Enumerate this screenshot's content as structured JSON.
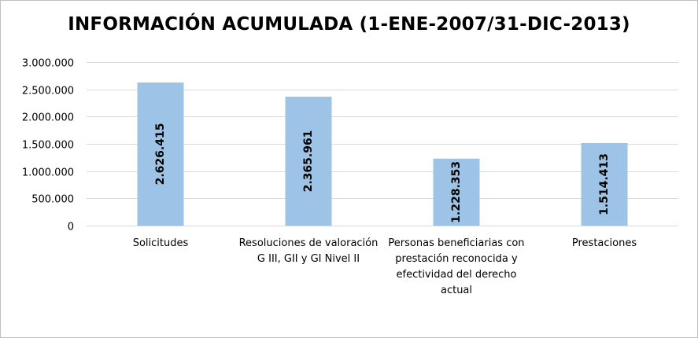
{
  "chart_data": {
    "type": "bar",
    "title": "INFORMACIÓN ACUMULADA (1-ENE-2007/31-DIC-2013)",
    "categories": [
      "Solicitudes",
      "Resoluciones de valoración G III, GII y GI Nivel II",
      "Personas beneficiarias con prestación reconocida y efectividad del derecho actual",
      "Prestaciones"
    ],
    "values": [
      2626415,
      2365961,
      1228353,
      1514413
    ],
    "value_labels": [
      "2.626.415",
      "2.365.961",
      "1.228.353",
      "1.514.413"
    ],
    "ylim": [
      0,
      3000000
    ],
    "yticks": [
      0,
      500000,
      1000000,
      1500000,
      2000000,
      2500000,
      3000000
    ],
    "ytick_labels": [
      "0",
      "500.000",
      "1.000.000",
      "1.500.000",
      "2.000.000",
      "2.500.000",
      "3.000.000"
    ],
    "xlabel": "",
    "ylabel": "",
    "grid": true,
    "legend": "none",
    "bar_color": "#9dc3e6",
    "grid_color": "#d9d9d9"
  }
}
